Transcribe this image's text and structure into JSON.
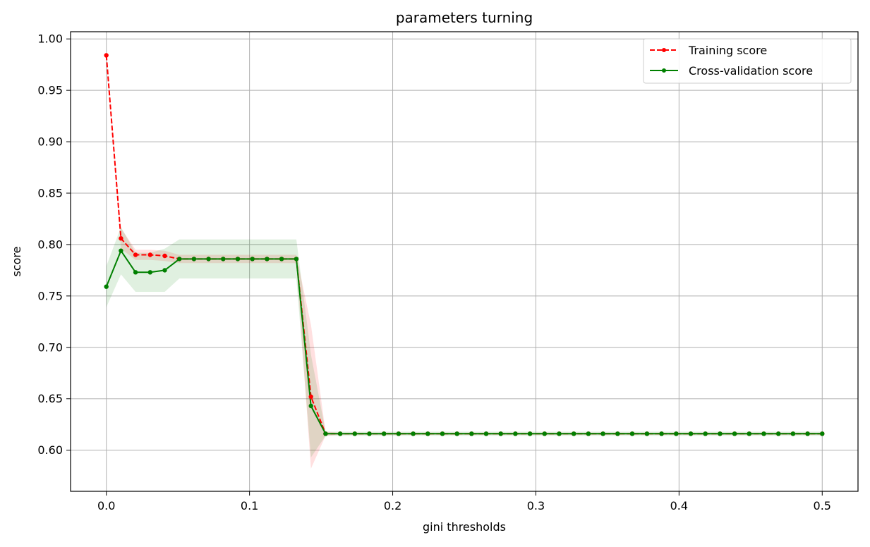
{
  "chart_data": {
    "type": "line",
    "title": "parameters turning",
    "xlabel": "gini thresholds",
    "ylabel": "score",
    "xlim": [
      -0.025,
      0.525
    ],
    "ylim": [
      0.56,
      1.007
    ],
    "xticks": [
      0.0,
      0.1,
      0.2,
      0.3,
      0.4,
      0.5
    ],
    "xtick_labels": [
      "0.0",
      "0.1",
      "0.2",
      "0.3",
      "0.4",
      "0.5"
    ],
    "yticks": [
      0.6,
      0.65,
      0.7,
      0.75,
      0.8,
      0.85,
      0.9,
      0.95,
      1.0
    ],
    "ytick_labels": [
      "0.60",
      "0.65",
      "0.70",
      "0.75",
      "0.80",
      "0.85",
      "0.90",
      "0.95",
      "1.00"
    ],
    "grid": true,
    "legend_position": "top-right",
    "x": [
      0.0,
      0.0102,
      0.0204,
      0.0306,
      0.0408,
      0.051,
      0.0612,
      0.0714,
      0.0816,
      0.0918,
      0.102,
      0.1122,
      0.1224,
      0.1327,
      0.1429,
      0.1531,
      0.1633,
      0.1735,
      0.1837,
      0.1939,
      0.2041,
      0.2143,
      0.2245,
      0.2347,
      0.2449,
      0.2551,
      0.2653,
      0.2755,
      0.2857,
      0.2959,
      0.3061,
      0.3163,
      0.3265,
      0.3367,
      0.3469,
      0.3571,
      0.3673,
      0.3776,
      0.3878,
      0.398,
      0.4082,
      0.4184,
      0.4286,
      0.4388,
      0.449,
      0.4592,
      0.4694,
      0.4796,
      0.4898,
      0.5
    ],
    "series": [
      {
        "name": "Training score",
        "color": "#ff0000",
        "linestyle": "dashed",
        "values": [
          0.984,
          0.806,
          0.79,
          0.79,
          0.789,
          0.786,
          0.786,
          0.786,
          0.786,
          0.786,
          0.786,
          0.786,
          0.786,
          0.786,
          0.652,
          0.616,
          0.616,
          0.616,
          0.616,
          0.616,
          0.616,
          0.616,
          0.616,
          0.616,
          0.616,
          0.616,
          0.616,
          0.616,
          0.616,
          0.616,
          0.616,
          0.616,
          0.616,
          0.616,
          0.616,
          0.616,
          0.616,
          0.616,
          0.616,
          0.616,
          0.616,
          0.616,
          0.616,
          0.616,
          0.616,
          0.616,
          0.616,
          0.616,
          0.616,
          0.616
        ],
        "band": [
          0.002,
          0.01,
          0.005,
          0.005,
          0.005,
          0.004,
          0.004,
          0.004,
          0.004,
          0.004,
          0.004,
          0.004,
          0.004,
          0.004,
          0.07,
          0.002,
          0.001,
          0.001,
          0.001,
          0.001,
          0.001,
          0.001,
          0.001,
          0.001,
          0.001,
          0.001,
          0.001,
          0.001,
          0.001,
          0.001,
          0.001,
          0.001,
          0.001,
          0.001,
          0.001,
          0.001,
          0.001,
          0.001,
          0.001,
          0.001,
          0.001,
          0.001,
          0.001,
          0.001,
          0.001,
          0.001,
          0.001,
          0.001,
          0.001,
          0.001
        ],
        "band_color": "#ff0000",
        "band_opacity": 0.12
      },
      {
        "name": "Cross-validation score",
        "color": "#008000",
        "linestyle": "solid",
        "values": [
          0.759,
          0.794,
          0.773,
          0.773,
          0.775,
          0.786,
          0.786,
          0.786,
          0.786,
          0.786,
          0.786,
          0.786,
          0.786,
          0.786,
          0.643,
          0.616,
          0.616,
          0.616,
          0.616,
          0.616,
          0.616,
          0.616,
          0.616,
          0.616,
          0.616,
          0.616,
          0.616,
          0.616,
          0.616,
          0.616,
          0.616,
          0.616,
          0.616,
          0.616,
          0.616,
          0.616,
          0.616,
          0.616,
          0.616,
          0.616,
          0.616,
          0.616,
          0.616,
          0.616,
          0.616,
          0.616,
          0.616,
          0.616,
          0.616,
          0.616
        ],
        "band": [
          0.02,
          0.023,
          0.019,
          0.019,
          0.021,
          0.019,
          0.019,
          0.019,
          0.019,
          0.019,
          0.019,
          0.019,
          0.019,
          0.019,
          0.05,
          0.002,
          0.002,
          0.002,
          0.002,
          0.002,
          0.002,
          0.002,
          0.002,
          0.002,
          0.002,
          0.002,
          0.002,
          0.002,
          0.002,
          0.002,
          0.002,
          0.002,
          0.002,
          0.002,
          0.002,
          0.002,
          0.002,
          0.002,
          0.002,
          0.002,
          0.002,
          0.002,
          0.002,
          0.002,
          0.002,
          0.002,
          0.002,
          0.002,
          0.002,
          0.002
        ],
        "band_color": "#008000",
        "band_opacity": 0.12
      }
    ]
  }
}
